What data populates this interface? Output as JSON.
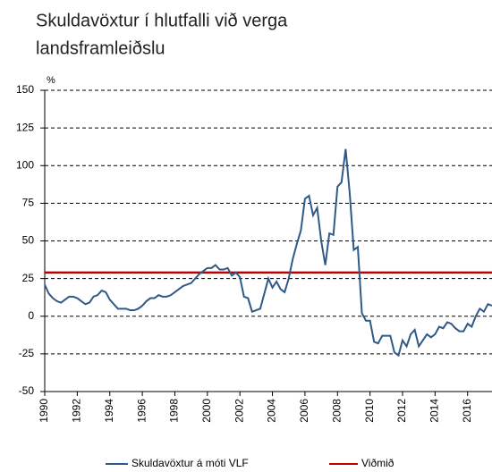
{
  "chart_data": {
    "type": "line",
    "title": [
      "Skuldavöxtur í hlutfalli við verga",
      "landsframleiðslu"
    ],
    "y_unit": "%",
    "x": [
      1990,
      1990.25,
      1990.5,
      1990.75,
      1991,
      1991.25,
      1991.5,
      1991.75,
      1992,
      1992.25,
      1992.5,
      1992.75,
      1993,
      1993.25,
      1993.5,
      1993.75,
      1994,
      1994.25,
      1994.5,
      1994.75,
      1995,
      1995.25,
      1995.5,
      1995.75,
      1996,
      1996.25,
      1996.5,
      1996.75,
      1997,
      1997.25,
      1997.5,
      1997.75,
      1998,
      1998.25,
      1998.5,
      1998.75,
      1999,
      1999.25,
      1999.5,
      1999.75,
      2000,
      2000.25,
      2000.5,
      2000.75,
      2001,
      2001.25,
      2001.5,
      2001.75,
      2002,
      2002.25,
      2002.5,
      2002.75,
      2003,
      2003.25,
      2003.5,
      2003.75,
      2004,
      2004.25,
      2004.5,
      2004.75,
      2005,
      2005.25,
      2005.5,
      2005.75,
      2006,
      2006.25,
      2006.5,
      2006.75,
      2007,
      2007.25,
      2007.5,
      2007.75,
      2008,
      2008.25,
      2008.5,
      2008.75,
      2009,
      2009.25,
      2009.5,
      2009.75,
      2010,
      2010.25,
      2010.5,
      2010.75,
      2011,
      2011.25,
      2011.5,
      2011.75,
      2012,
      2012.25,
      2012.5,
      2012.75,
      2013,
      2013.25,
      2013.5,
      2013.75,
      2014,
      2014.25,
      2014.5,
      2014.75,
      2015,
      2015.25,
      2015.5,
      2015.75,
      2016,
      2016.25,
      2016.5,
      2016.75,
      2017,
      2017.25,
      2017.5
    ],
    "series": [
      {
        "name": "Skuldavöxtur á móti VLF",
        "color": "#2f5a88",
        "values": [
          21,
          15,
          12,
          10,
          9,
          11,
          13,
          13,
          12,
          10,
          8,
          9,
          13,
          14,
          17,
          16,
          11,
          8,
          5,
          5,
          5,
          4,
          4,
          5,
          7,
          10,
          12,
          12,
          14,
          13,
          13,
          14,
          16,
          18,
          20,
          21,
          22,
          25,
          28,
          30,
          32,
          32,
          34,
          31,
          31,
          32,
          27,
          29,
          26,
          13,
          12,
          3,
          4,
          5,
          15,
          25,
          19,
          23,
          18,
          16,
          25,
          38,
          48,
          57,
          78,
          80,
          67,
          72,
          50,
          34,
          55,
          54,
          86,
          89,
          111,
          82,
          44,
          46,
          2,
          -3,
          -3,
          -17,
          -18,
          -13,
          -13,
          -13,
          -24,
          -26,
          -16,
          -20,
          -12,
          -9,
          -20,
          -16,
          -12,
          -14,
          -12,
          -7,
          -8,
          -4,
          -5,
          -8,
          -10,
          -10,
          -5,
          -7,
          0,
          5,
          3,
          8,
          7
        ]
      }
    ],
    "reference_line": {
      "name": "Viðmið",
      "value": 29,
      "color": "#c00000"
    },
    "xlim": [
      1990,
      2017.5
    ],
    "xticks": [
      1990,
      1992,
      1994,
      1996,
      1998,
      2000,
      2002,
      2004,
      2006,
      2008,
      2010,
      2012,
      2014,
      2016
    ],
    "ylim": [
      -50,
      150
    ],
    "yticks": [
      -50,
      -25,
      0,
      25,
      50,
      75,
      100,
      125,
      150
    ],
    "grid": true
  }
}
